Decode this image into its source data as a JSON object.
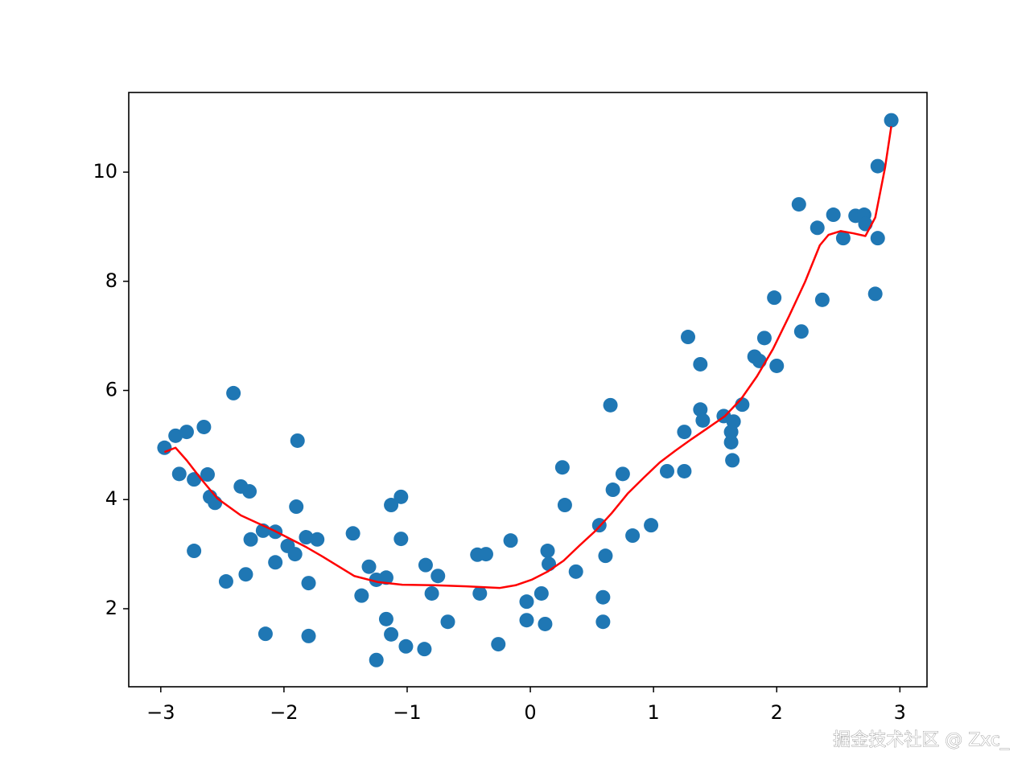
{
  "chart_data": {
    "type": "scatter",
    "xlim": [
      -3.26,
      3.22
    ],
    "ylim": [
      0.57,
      11.46
    ],
    "xticks": [
      {
        "value": -3,
        "label": "−3"
      },
      {
        "value": -2,
        "label": "−2"
      },
      {
        "value": -1,
        "label": "−1"
      },
      0,
      1,
      2,
      3
    ],
    "yticks": [
      2,
      4,
      6,
      8,
      10
    ],
    "grid": false,
    "annotation": "掘金技术社区 @ Zxc_",
    "series": [
      {
        "type": "scatter",
        "color": "#1f77b4",
        "x": [
          -2.97,
          -2.88,
          -2.79,
          -2.65,
          -2.85,
          -2.73,
          -2.62,
          -2.6,
          -2.56,
          -2.41,
          -2.35,
          -2.28,
          -2.73,
          -2.47,
          -2.31,
          -2.27,
          -2.17,
          -2.07,
          -2.15,
          -2.07,
          -1.97,
          -1.91,
          -1.9,
          -1.89,
          -1.82,
          -1.8,
          -1.8,
          -1.73,
          -1.44,
          -1.37,
          -1.31,
          -1.25,
          -1.25,
          -1.17,
          -1.17,
          -1.13,
          -1.13,
          -1.05,
          -1.05,
          -1.01,
          -0.86,
          -0.85,
          -0.8,
          -0.75,
          -0.67,
          -0.43,
          -0.41,
          -0.36,
          -0.26,
          -0.16,
          -0.03,
          -0.03,
          0.09,
          0.12,
          0.14,
          0.15,
          0.26,
          0.28,
          0.37,
          0.56,
          0.59,
          0.59,
          0.61,
          0.65,
          0.67,
          0.75,
          0.83,
          0.98,
          1.11,
          1.25,
          1.25,
          1.28,
          1.38,
          1.38,
          1.4,
          1.57,
          1.63,
          1.63,
          1.64,
          1.65,
          1.72,
          1.82,
          1.86,
          1.9,
          1.98,
          2.0,
          2.18,
          2.2,
          2.33,
          2.37,
          2.46,
          2.54,
          2.64,
          2.71,
          2.72,
          2.8,
          2.82,
          2.82,
          2.93
        ],
        "values": [
          4.95,
          5.17,
          5.24,
          5.33,
          4.47,
          4.37,
          4.46,
          4.05,
          3.94,
          5.95,
          4.24,
          4.15,
          3.06,
          2.5,
          2.63,
          3.27,
          3.43,
          3.41,
          1.54,
          2.85,
          3.15,
          3.0,
          3.87,
          5.08,
          3.31,
          2.47,
          1.5,
          3.27,
          3.38,
          2.24,
          2.77,
          2.53,
          1.06,
          2.57,
          1.81,
          1.53,
          3.9,
          4.05,
          3.28,
          1.31,
          1.26,
          2.8,
          2.28,
          2.6,
          1.76,
          2.99,
          2.28,
          3.0,
          1.35,
          3.25,
          2.13,
          1.79,
          2.28,
          1.72,
          3.06,
          2.82,
          4.59,
          3.9,
          2.68,
          3.53,
          2.21,
          1.76,
          2.97,
          5.73,
          4.18,
          4.47,
          3.34,
          3.53,
          4.52,
          5.24,
          4.52,
          6.98,
          6.48,
          5.65,
          5.45,
          5.53,
          5.05,
          5.24,
          4.72,
          5.43,
          5.74,
          6.62,
          6.54,
          6.96,
          7.7,
          6.45,
          9.41,
          7.08,
          8.98,
          7.66,
          9.22,
          8.79,
          9.2,
          9.22,
          9.05,
          7.77,
          10.11,
          8.79,
          10.95
        ]
      },
      {
        "type": "line",
        "color": "#ff0000",
        "x": [
          -2.97,
          -2.88,
          -2.79,
          -2.67,
          -2.54,
          -2.35,
          -2.08,
          -1.82,
          -1.69,
          -1.43,
          -1.24,
          -1.04,
          -0.78,
          -0.52,
          -0.25,
          -0.12,
          0.01,
          0.14,
          0.27,
          0.4,
          0.53,
          0.66,
          0.79,
          0.92,
          1.05,
          1.18,
          1.31,
          1.44,
          1.58,
          1.71,
          1.84,
          1.97,
          2.1,
          2.23,
          2.35,
          2.42,
          2.52,
          2.62,
          2.72,
          2.8,
          2.88,
          2.93
        ],
        "values": [
          4.87,
          4.95,
          4.72,
          4.37,
          4.02,
          3.71,
          3.43,
          3.13,
          2.96,
          2.6,
          2.49,
          2.44,
          2.43,
          2.41,
          2.38,
          2.43,
          2.53,
          2.68,
          2.88,
          3.16,
          3.43,
          3.75,
          4.11,
          4.4,
          4.68,
          4.9,
          5.11,
          5.31,
          5.53,
          5.84,
          6.26,
          6.76,
          7.36,
          7.99,
          8.66,
          8.85,
          8.92,
          8.88,
          8.83,
          9.17,
          10.09,
          10.84
        ]
      }
    ]
  }
}
